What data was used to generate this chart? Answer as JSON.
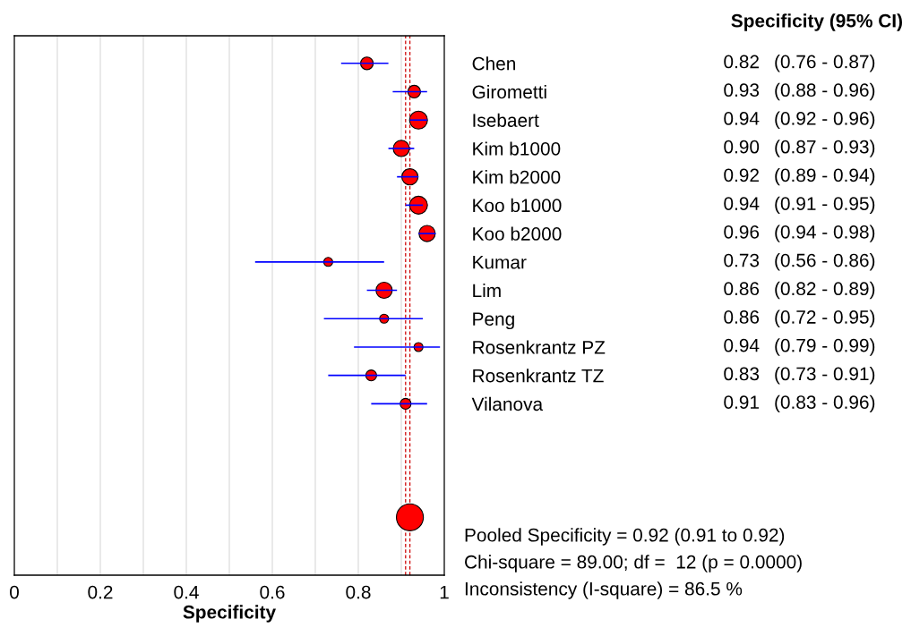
{
  "chart_data": {
    "type": "bubble",
    "orientation": "horizontal",
    "xlabel": "Specificity",
    "categories": [
      "Chen",
      "Girometti",
      "Isebaert",
      "Kim b1000",
      "Kim b2000",
      "Koo b1000",
      "Koo b2000",
      "Kumar",
      "Lim",
      "Peng",
      "Rosenkrantz PZ",
      "Rosenkrantz TZ",
      "Vilanova",
      null,
      null,
      null,
      null
    ],
    "values": [
      0.82,
      0.93,
      0.94,
      0.9,
      0.92,
      0.94,
      0.96,
      0.73,
      0.86,
      0.86,
      0.94,
      0.83,
      0.91,
      null,
      null,
      null,
      0.92
    ],
    "errors": [
      [
        0.76,
        0.87
      ],
      [
        0.88,
        0.96
      ],
      [
        0.92,
        0.96
      ],
      [
        0.87,
        0.93
      ],
      [
        0.89,
        0.94
      ],
      [
        0.91,
        0.95
      ],
      [
        0.94,
        0.98
      ],
      [
        0.56,
        0.86
      ],
      [
        0.82,
        0.89
      ],
      [
        0.72,
        0.95
      ],
      [
        0.79,
        0.99
      ],
      [
        0.73,
        0.91
      ],
      [
        0.83,
        0.96
      ],
      null,
      null,
      null,
      null
    ],
    "sizes": [
      0.22,
      0.22,
      0.44,
      0.36,
      0.36,
      0.44,
      0.36,
      0.11,
      0.36,
      0.11,
      0.11,
      0.16,
      0.16,
      null,
      null,
      null,
      1
    ],
    "value_labels": [
      "0.82 (0.76 - 0.87)",
      "0.93 (0.88 - 0.96)",
      "0.94 (0.92 - 0.96)",
      "0.90 (0.87 - 0.93)",
      "0.92 (0.89 - 0.94)",
      "0.94 (0.91 - 0.95)",
      "0.96 (0.94 - 0.98)",
      "0.73 (0.56 - 0.86)",
      "0.86 (0.82 - 0.89)",
      "0.86 (0.72 - 0.95)",
      "0.94 (0.79 - 0.99)",
      "0.83 (0.73 - 0.91)",
      "0.91 (0.83 - 0.96)",
      null,
      null,
      null,
      null
    ],
    "color": "#ff0000",
    "xlim": [
      0,
      1
    ],
    "xticks": [
      0,
      {
        "value": 0.1,
        "label": null
      },
      0.2,
      {
        "value": 0.3,
        "label": null
      },
      0.4,
      {
        "value": 0.5,
        "label": null
      },
      0.6,
      {
        "value": 0.7,
        "label": null
      },
      0.8,
      {
        "value": 0.9,
        "label": null
      },
      1
    ],
    "grid": "x",
    "ref_lines": [
      {
        "axis": "x",
        "value": 0.91,
        "color": "#cc0000",
        "line_style": "dashed"
      },
      {
        "axis": "x",
        "value": 0.92,
        "color": "#cc0000",
        "line_style": "dashed"
      }
    ],
    "annotations": [
      "Specificity (95% CI)",
      "Pooled Specificity = 0.92 (0.91 to 0.92)",
      "Chi-square = 89.00; df =  12 (p = 0.0000)",
      "Inconsistency (I-square) = 86.5 %"
    ]
  }
}
